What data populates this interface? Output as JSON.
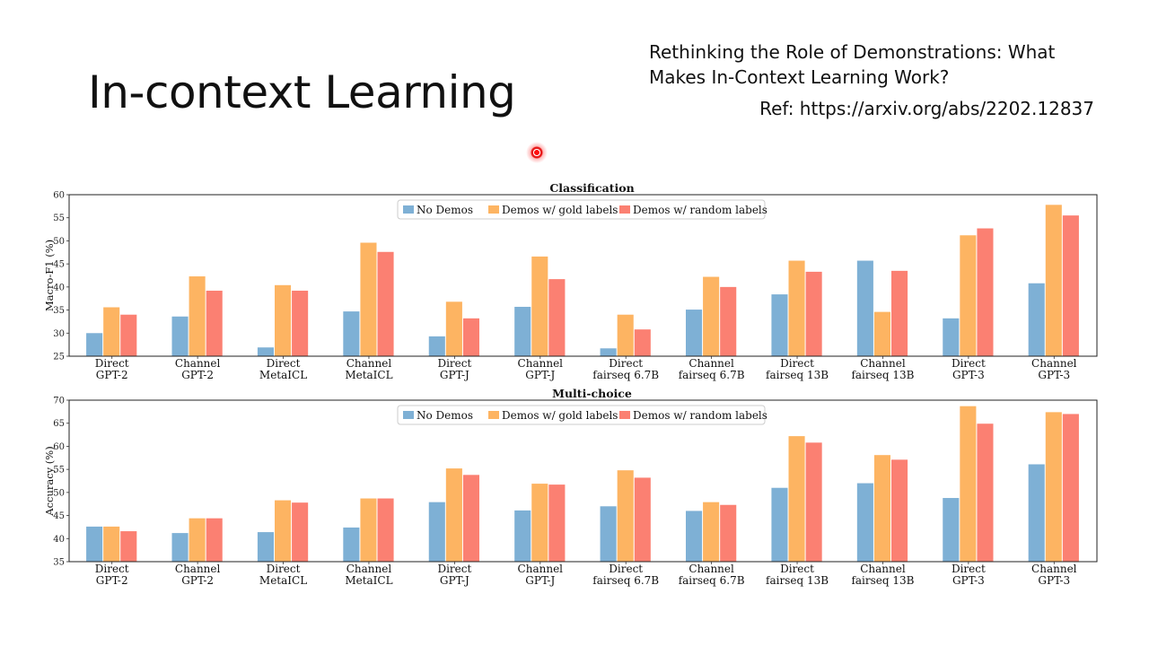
{
  "slide": {
    "title": "In-context Learning",
    "paper_title": "Rethinking the Role of Demonstrations: What Makes In-Context Learning Work?",
    "ref": "Ref: https://arxiv.org/abs/2202.12837"
  },
  "colors": {
    "series": [
      "#7eb0d5",
      "#fdb462",
      "#fb8072"
    ]
  },
  "chart_data": [
    {
      "type": "bar",
      "title": "Classification",
      "ylabel": "Macro-F1 (%)",
      "ylim": [
        25,
        60
      ],
      "yticks": [
        25,
        30,
        35,
        40,
        45,
        50,
        55,
        60
      ],
      "legend": "top-center",
      "categories": [
        [
          "Direct",
          "GPT-2"
        ],
        [
          "Channel",
          "GPT-2"
        ],
        [
          "Direct",
          "MetaICL"
        ],
        [
          "Channel",
          "MetaICL"
        ],
        [
          "Direct",
          "GPT-J"
        ],
        [
          "Channel",
          "GPT-J"
        ],
        [
          "Direct",
          "fairseq 6.7B"
        ],
        [
          "Channel",
          "fairseq 6.7B"
        ],
        [
          "Direct",
          "fairseq 13B"
        ],
        [
          "Channel",
          "fairseq 13B"
        ],
        [
          "Direct",
          "GPT-3"
        ],
        [
          "Channel",
          "GPT-3"
        ]
      ],
      "series": [
        {
          "name": "No Demos",
          "values": [
            30.0,
            33.6,
            26.9,
            34.7,
            29.3,
            35.7,
            26.7,
            35.1,
            38.4,
            45.7,
            33.2,
            40.8
          ]
        },
        {
          "name": "Demos w/ gold labels",
          "values": [
            35.6,
            42.3,
            40.4,
            49.6,
            36.8,
            46.6,
            34.0,
            42.2,
            45.7,
            34.6,
            51.2,
            57.8
          ]
        },
        {
          "name": "Demos w/ random labels",
          "values": [
            34.0,
            39.2,
            39.2,
            47.6,
            33.2,
            41.7,
            30.8,
            40.0,
            43.3,
            43.5,
            52.7,
            55.5
          ]
        }
      ]
    },
    {
      "type": "bar",
      "title": "Multi-choice",
      "ylabel": "Accuracy (%)",
      "ylim": [
        35,
        70
      ],
      "yticks": [
        35,
        40,
        45,
        50,
        55,
        60,
        65,
        70
      ],
      "legend": "top-center",
      "categories": [
        [
          "Direct",
          "GPT-2"
        ],
        [
          "Channel",
          "GPT-2"
        ],
        [
          "Direct",
          "MetaICL"
        ],
        [
          "Channel",
          "MetaICL"
        ],
        [
          "Direct",
          "GPT-J"
        ],
        [
          "Channel",
          "GPT-J"
        ],
        [
          "Direct",
          "fairseq 6.7B"
        ],
        [
          "Channel",
          "fairseq 6.7B"
        ],
        [
          "Direct",
          "fairseq 13B"
        ],
        [
          "Channel",
          "fairseq 13B"
        ],
        [
          "Direct",
          "GPT-3"
        ],
        [
          "Channel",
          "GPT-3"
        ]
      ],
      "series": [
        {
          "name": "No Demos",
          "values": [
            42.6,
            41.2,
            41.4,
            42.4,
            47.9,
            46.1,
            47.0,
            46.0,
            51.0,
            52.0,
            48.8,
            56.1
          ]
        },
        {
          "name": "Demos w/ gold labels",
          "values": [
            42.6,
            44.4,
            48.3,
            48.7,
            55.2,
            51.9,
            54.8,
            47.9,
            62.2,
            58.1,
            68.7,
            67.4
          ]
        },
        {
          "name": "Demos w/ random labels",
          "values": [
            41.6,
            44.4,
            47.8,
            48.7,
            53.8,
            51.7,
            53.2,
            47.3,
            60.8,
            57.1,
            64.9,
            67.0
          ]
        }
      ]
    }
  ]
}
